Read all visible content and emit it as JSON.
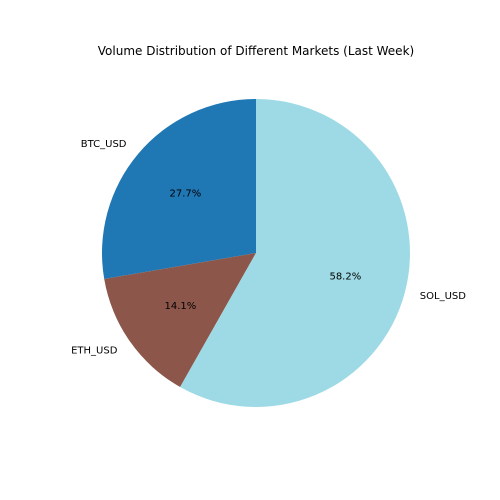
{
  "chart_data": {
    "type": "pie",
    "title": "Volume Distribution of Different Markets (Last Week)",
    "categories": [
      "BTC_USD",
      "ETH_USD",
      "SOL_USD"
    ],
    "values": [
      27.7,
      14.1,
      58.2
    ],
    "percent_labels": [
      "27.7%",
      "14.1%",
      "58.2%"
    ],
    "colors": [
      "#1f77b4",
      "#8c564b",
      "#9edae5"
    ],
    "start_angle_deg": 90,
    "direction": "counterclockwise",
    "legend": "none"
  }
}
